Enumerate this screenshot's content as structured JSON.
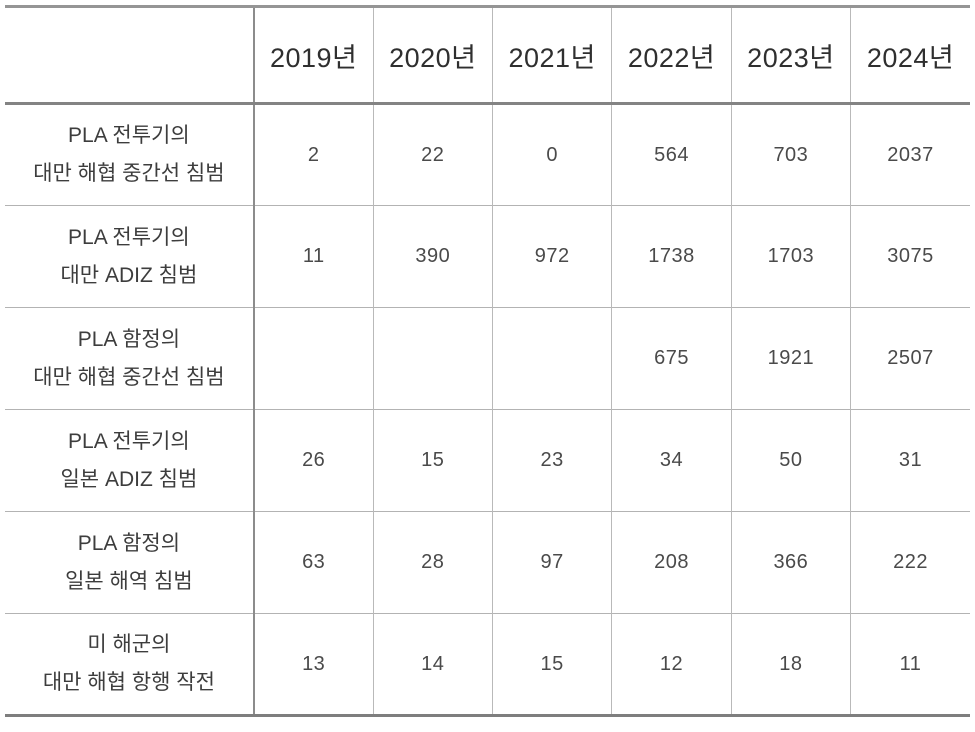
{
  "chart_data": {
    "type": "table",
    "corner_label": "",
    "categories": [
      "2019년",
      "2020년",
      "2021년",
      "2022년",
      "2023년",
      "2024년"
    ],
    "rows": [
      {
        "label": "PLA 전투기의\n대만 해협 중간선 침범",
        "values": [
          2,
          22,
          0,
          564,
          703,
          2037
        ]
      },
      {
        "label": "PLA 전투기의\n대만 ADIZ 침범",
        "values": [
          11,
          390,
          972,
          1738,
          1703,
          3075
        ]
      },
      {
        "label": "PLA 함정의\n대만 해협 중간선 침범",
        "values": [
          null,
          null,
          null,
          675,
          1921,
          2507
        ]
      },
      {
        "label": "PLA 전투기의\n일본 ADIZ 침범",
        "values": [
          26,
          15,
          23,
          34,
          50,
          31
        ]
      },
      {
        "label": "PLA 함정의\n일본 해역 침범",
        "values": [
          63,
          28,
          97,
          208,
          366,
          222
        ]
      },
      {
        "label": "미 해군의\n대만 해협 항행 작전",
        "values": [
          13,
          14,
          15,
          12,
          18,
          11
        ]
      }
    ],
    "layout": {
      "grid": "on",
      "empty_cells_rows_2019_2021_for_row_index": 2
    },
    "colors": {
      "thick_rule": "#8a8a8a",
      "thin_rule": "#b5b5b5",
      "header_text": "#2f2f2f",
      "label_text": "#3d3d3d",
      "value_text": "#4a4a4a",
      "background": "#ffffff"
    }
  }
}
